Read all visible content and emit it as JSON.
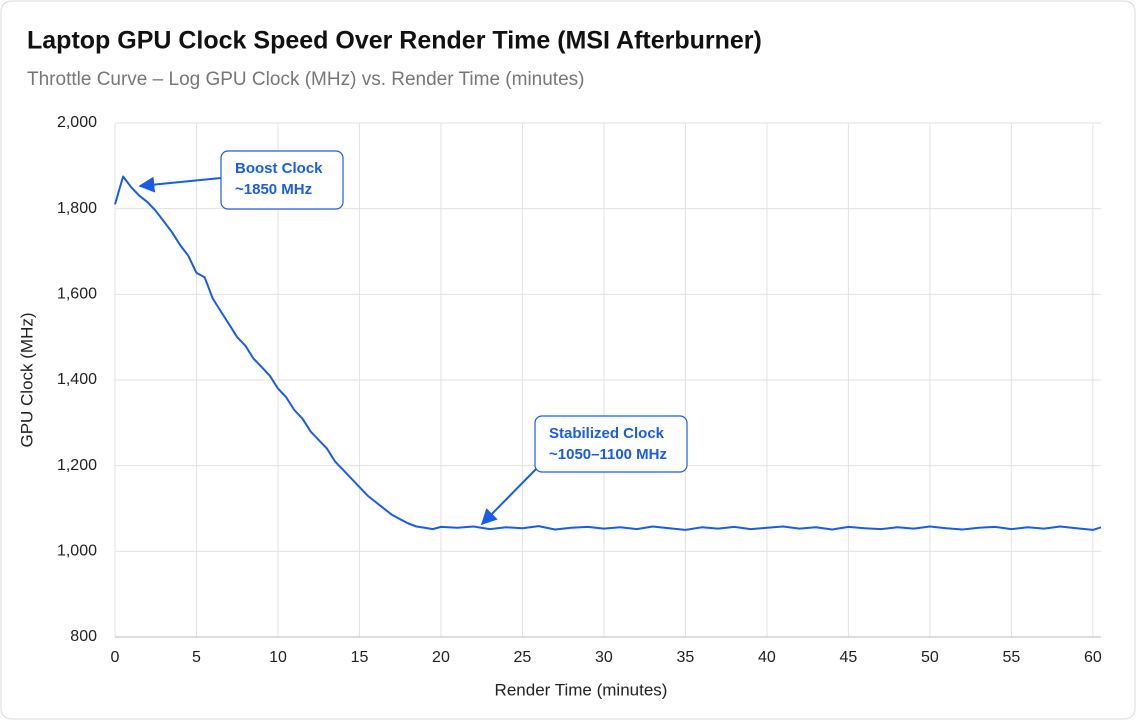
{
  "chart_data": {
    "type": "line",
    "title": "Laptop GPU Clock Speed Over Render Time (MSI Afterburner)",
    "subtitle": "Throttle Curve – Log GPU Clock (MHz) vs. Render Time (minutes)",
    "x_label": "Render Time (minutes)",
    "y_label": "GPU Clock (MHz)",
    "xlim": [
      0,
      60.5
    ],
    "xticks": [
      0,
      5,
      10,
      15,
      20,
      25,
      30,
      35,
      40,
      45,
      50,
      55,
      60
    ],
    "ylim": [
      800,
      2000
    ],
    "yticks": [
      {
        "value": 800,
        "label": "800"
      },
      {
        "value": 1000,
        "label": "1,000"
      },
      {
        "value": 1200,
        "label": "1,200"
      },
      {
        "value": 1400,
        "label": "1,400"
      },
      {
        "value": 1600,
        "label": "1,600"
      },
      {
        "value": 1800,
        "label": "1,800"
      },
      {
        "value": 2000,
        "label": "2,000"
      }
    ],
    "grid": true,
    "x": [
      0,
      0.5,
      1,
      1.5,
      2,
      2.5,
      3,
      3.5,
      4,
      4.5,
      5,
      5.5,
      6,
      6.5,
      7,
      7.5,
      8,
      8.5,
      9,
      9.5,
      10,
      10.5,
      11,
      11.5,
      12,
      12.5,
      13,
      13.5,
      14,
      14.5,
      15,
      15.5,
      16,
      16.5,
      17,
      17.5,
      18,
      18.5,
      19,
      19.5,
      20,
      21,
      22,
      23,
      24,
      25,
      26,
      27,
      28,
      29,
      30,
      31,
      32,
      33,
      34,
      35,
      36,
      37,
      38,
      39,
      40,
      41,
      42,
      43,
      44,
      45,
      46,
      47,
      48,
      49,
      50,
      51,
      52,
      53,
      54,
      55,
      56,
      57,
      58,
      59,
      60,
      60.5
    ],
    "series": [
      {
        "name": "GPU Clock",
        "color": "#1a5ce6",
        "values": [
          1810,
          1875,
          1850,
          1830,
          1815,
          1795,
          1770,
          1745,
          1715,
          1690,
          1650,
          1640,
          1590,
          1560,
          1530,
          1500,
          1480,
          1450,
          1430,
          1410,
          1380,
          1360,
          1330,
          1310,
          1280,
          1260,
          1240,
          1210,
          1190,
          1170,
          1150,
          1130,
          1115,
          1100,
          1085,
          1075,
          1065,
          1058,
          1055,
          1052,
          1057,
          1055,
          1058,
          1052,
          1056,
          1054,
          1059,
          1051,
          1055,
          1057,
          1053,
          1056,
          1052,
          1058,
          1054,
          1050,
          1056,
          1053,
          1057,
          1052,
          1055,
          1058,
          1053,
          1056,
          1051,
          1057,
          1054,
          1052,
          1056,
          1053,
          1058,
          1054,
          1051,
          1055,
          1057,
          1052,
          1056,
          1053,
          1058,
          1054,
          1050,
          1056
        ]
      }
    ],
    "annotations": [
      {
        "lines": [
          "Boost Clock",
          "~1850 MHz"
        ]
      },
      {
        "lines": [
          "Stabilized Clock",
          "~1050–1100 MHz"
        ]
      }
    ]
  }
}
